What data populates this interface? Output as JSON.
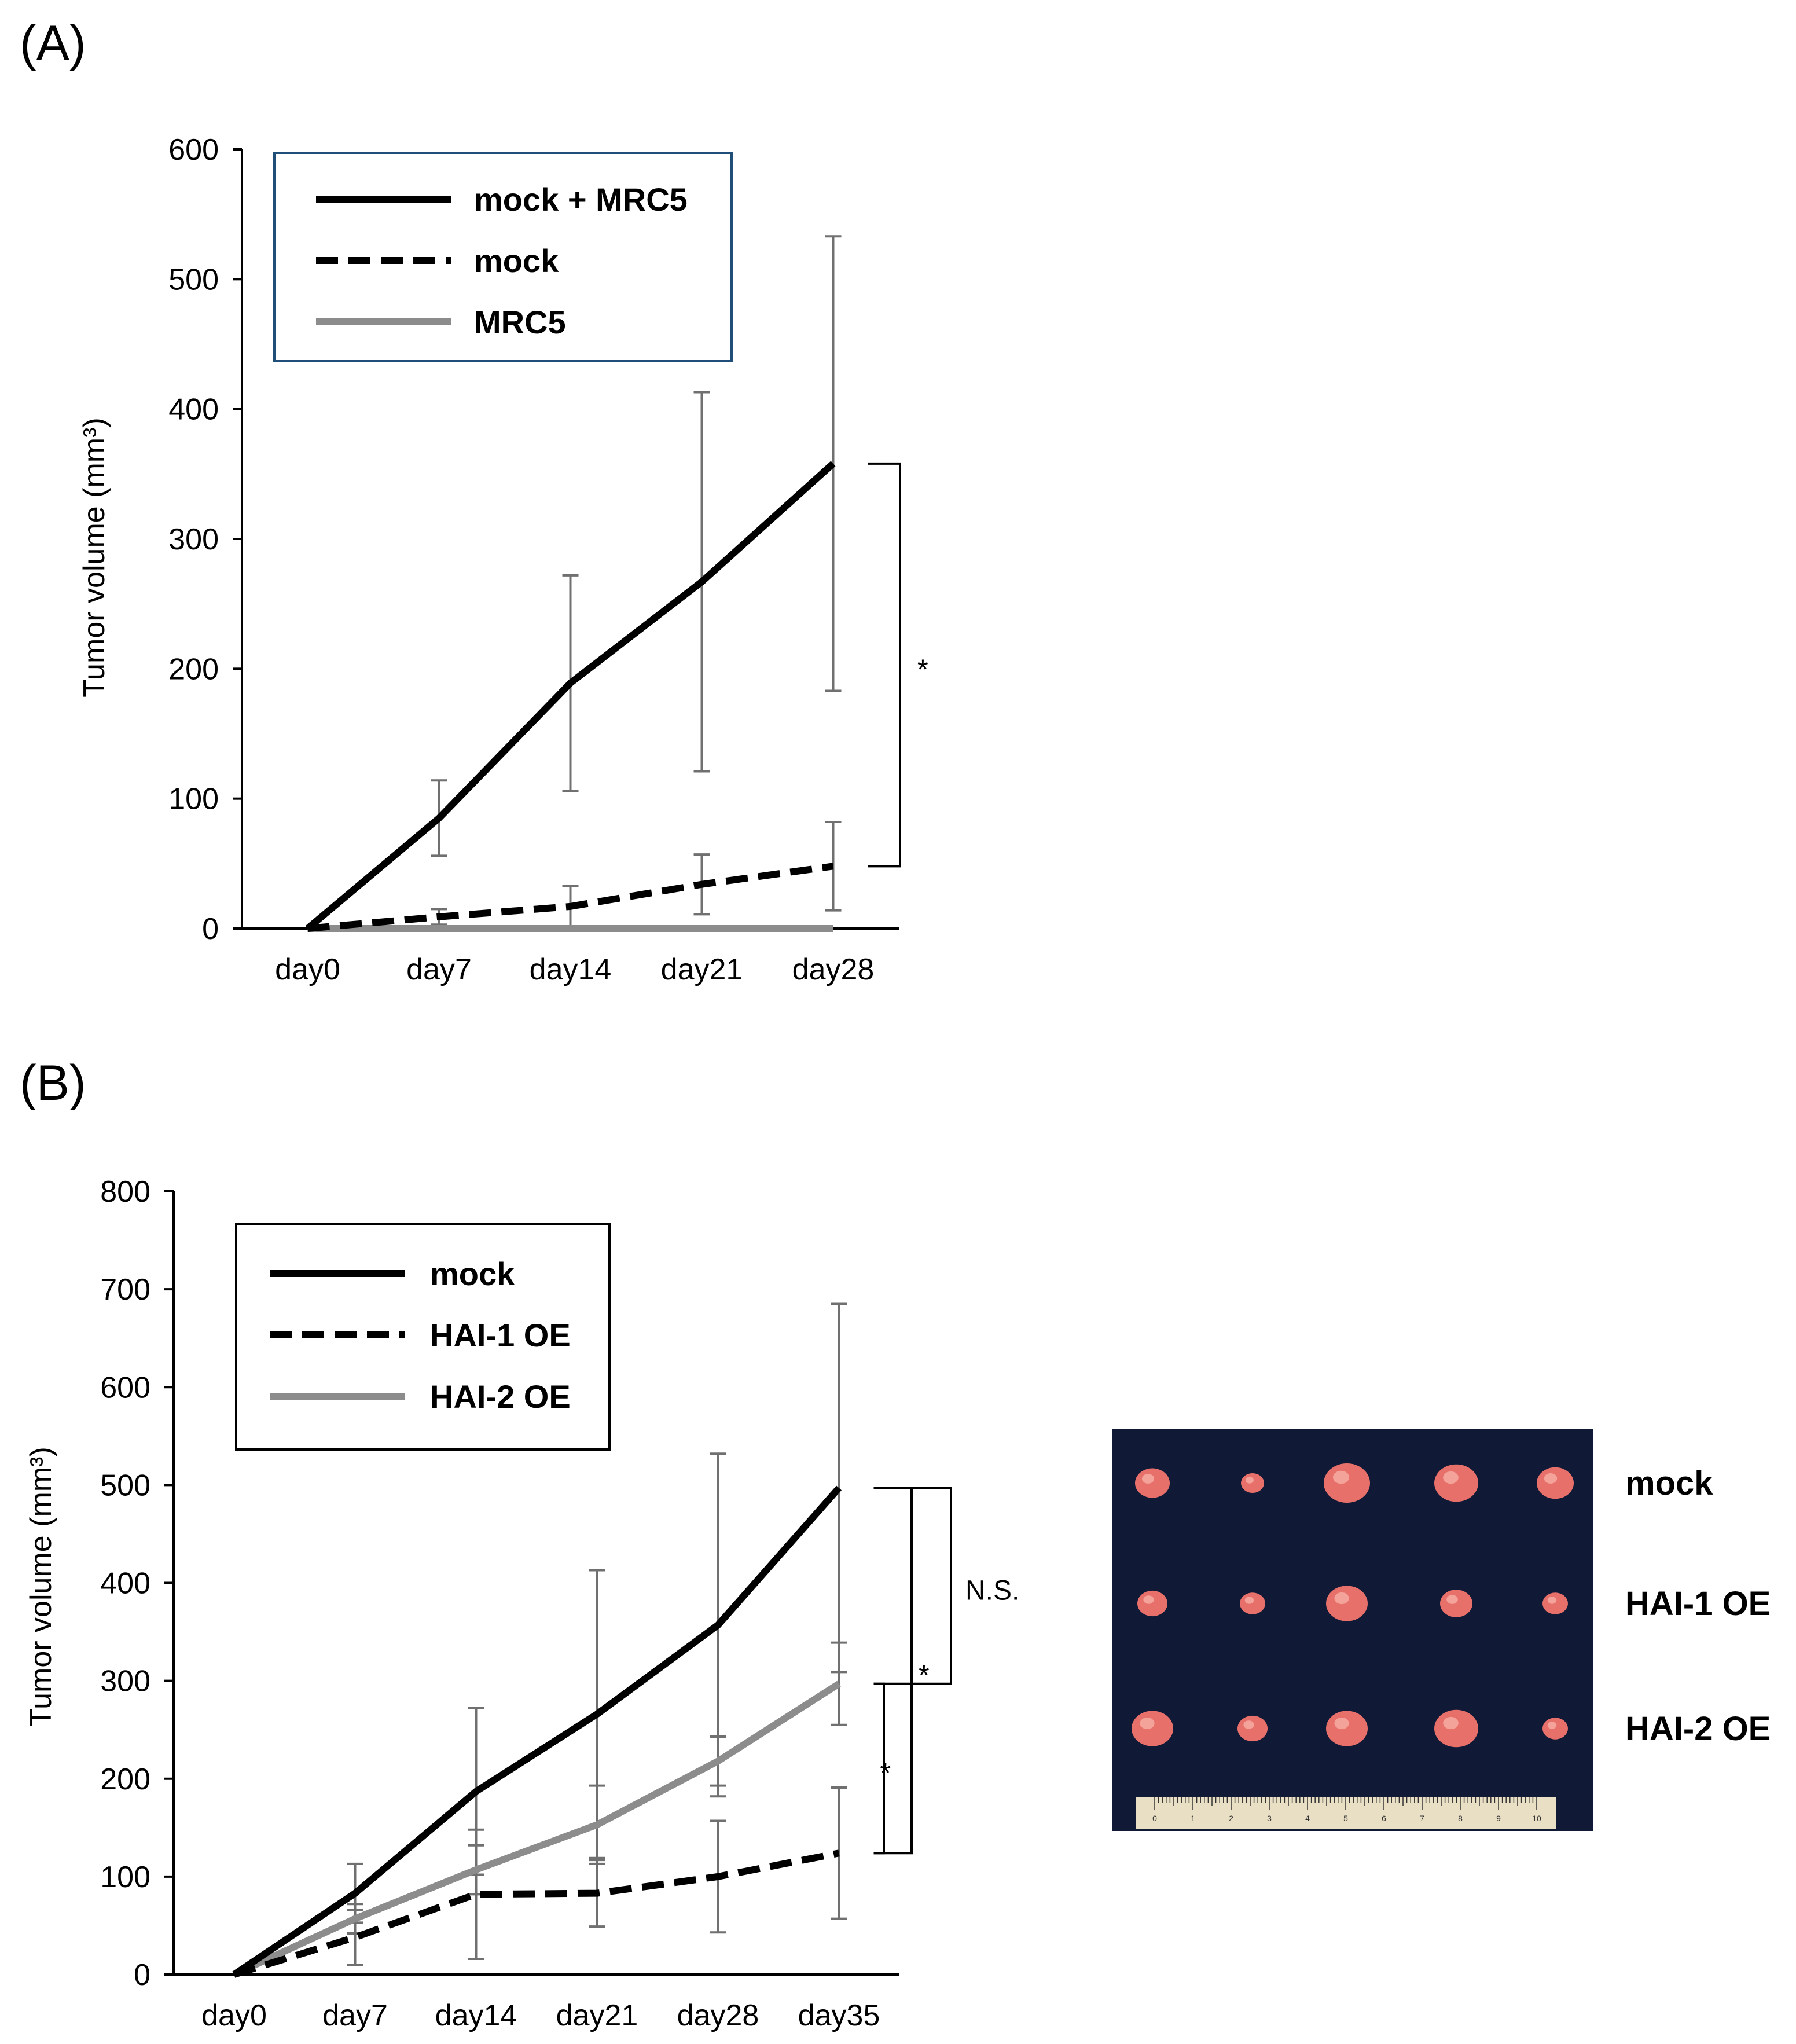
{
  "panels": {
    "a": {
      "label": "(A)"
    },
    "b": {
      "label": "(B)"
    }
  },
  "chart_data": [
    {
      "type": "line",
      "panel": "(A)",
      "ylabel": "Tumor volume (mm³)",
      "xlabel": "",
      "ylim": [
        0,
        600
      ],
      "yticks": [
        0,
        100,
        200,
        300,
        400,
        500,
        600
      ],
      "categories": [
        "day0",
        "day7",
        "day14",
        "day21",
        "day28"
      ],
      "legend_position": "top-left",
      "series": [
        {
          "name": "mock + MRC5",
          "style": "solid",
          "color": "#000000",
          "values": [
            0,
            85,
            189,
            267,
            358
          ],
          "errors": [
            0,
            29,
            83,
            146,
            175
          ]
        },
        {
          "name": "mock",
          "style": "dashed",
          "color": "#000000",
          "values": [
            0,
            9,
            17,
            34,
            48
          ],
          "errors": [
            0,
            6,
            16,
            23,
            34
          ]
        },
        {
          "name": "MRC5",
          "style": "solid",
          "color": "#8c8c8c",
          "values": [
            0,
            0,
            0,
            0,
            0
          ],
          "errors": [
            0,
            0,
            0,
            0,
            0
          ]
        }
      ],
      "significance": [
        {
          "between": [
            "mock + MRC5",
            "mock"
          ],
          "at": "day28",
          "label": "*"
        }
      ]
    },
    {
      "type": "line",
      "panel": "(B)",
      "ylabel": "Tumor volume (mm³)",
      "xlabel": "",
      "ylim": [
        0,
        800
      ],
      "yticks": [
        0,
        100,
        200,
        300,
        400,
        500,
        600,
        700,
        800
      ],
      "categories": [
        "day0",
        "day7",
        "day14",
        "day21",
        "day28",
        "day35"
      ],
      "legend_position": "top-left",
      "series": [
        {
          "name": "mock",
          "style": "solid",
          "color": "#000000",
          "values": [
            0,
            83,
            187,
            266,
            357,
            497
          ],
          "errors": [
            0,
            30,
            85,
            147,
            175,
            188
          ]
        },
        {
          "name": "HAI-1 OE",
          "style": "dashed",
          "color": "#000000",
          "values": [
            0,
            38,
            82,
            83,
            100,
            124
          ],
          "errors": [
            0,
            28,
            66,
            34,
            57,
            67
          ]
        },
        {
          "name": "HAI-2 OE",
          "style": "solid",
          "color": "#8c8c8c",
          "values": [
            0,
            57,
            107,
            153,
            218,
            297
          ],
          "errors": [
            0,
            15,
            25,
            40,
            25,
            42
          ]
        }
      ],
      "significance": [
        {
          "between": [
            "mock",
            "HAI-2 OE"
          ],
          "at": "day35",
          "label": "N.S."
        },
        {
          "between": [
            "mock",
            "HAI-1 OE"
          ],
          "at": "day35",
          "label": "*"
        },
        {
          "between": [
            "HAI-2 OE",
            "HAI-1 OE"
          ],
          "at": "day35",
          "label": "*"
        }
      ]
    }
  ],
  "photo": {
    "row_labels": [
      "mock",
      "HAI-1 OE",
      "HAI-2 OE"
    ],
    "ruler_numbers": [
      "0",
      "1",
      "2",
      "3",
      "4",
      "5",
      "6",
      "7",
      "8",
      "9",
      "10"
    ],
    "background_color": "#101a36",
    "tumor_color": "#e8706a"
  }
}
